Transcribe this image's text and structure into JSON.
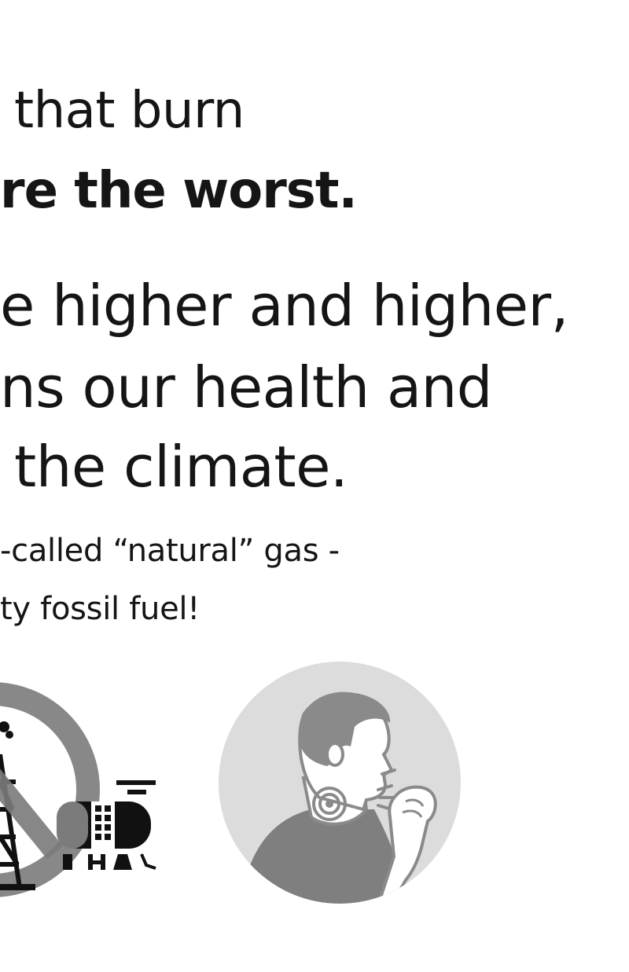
{
  "text": {
    "line1": "that burn",
    "line2": "re the worst.",
    "line3": "e higher and higher,",
    "line4": "ns our health and",
    "line5": "the climate.",
    "line6": "-called “natural” gas -",
    "line7": "ty fossil fuel!"
  },
  "icons": {
    "left": "oil-rig-and-tank-no-symbol-icon",
    "right": "person-coughing-icon"
  },
  "colors": {
    "text": "#151515",
    "circle_light": "#dcdcdc",
    "circle_dark": "#7b7b7b",
    "figure": "#8a8a8a",
    "black": "#111111"
  }
}
